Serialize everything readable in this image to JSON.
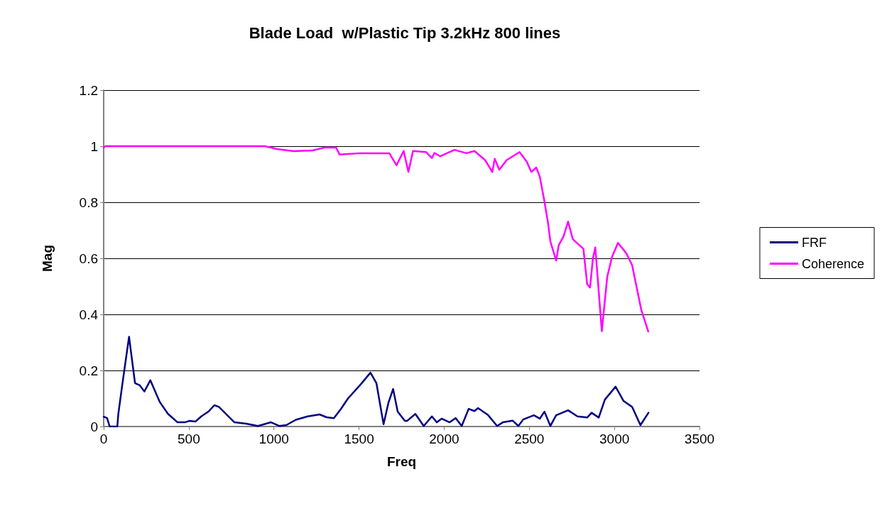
{
  "chart_data": {
    "type": "line",
    "title": "Blade Load  w/Plastic Tip 3.2kHz 800 lines",
    "xlabel": "Freq",
    "ylabel": "Mag",
    "xlim": [
      0,
      3500
    ],
    "xticks": [
      0,
      500,
      1000,
      1500,
      2000,
      2500,
      3000,
      3500
    ],
    "ylim": [
      0,
      1.2
    ],
    "yticks": [
      0,
      0.2,
      0.4,
      0.6,
      0.8,
      1,
      1.2
    ],
    "grid": "y",
    "legend": "right",
    "marker": "none",
    "line_style": "solid",
    "series": [
      {
        "name": "FRF",
        "color": "#000080",
        "x": [
          0,
          20,
          35,
          80,
          86,
          114,
          149,
          184,
          212,
          239,
          274,
          330,
          378,
          434,
          476,
          503,
          540,
          573,
          615,
          650,
          677,
          768,
          837,
          906,
          983,
          1031,
          1073,
          1129,
          1198,
          1268,
          1310,
          1352,
          1393,
          1435,
          1505,
          1567,
          1602,
          1644,
          1672,
          1700,
          1727,
          1769,
          1782,
          1831,
          1880,
          1928,
          1957,
          1985,
          2032,
          2068,
          2103,
          2144,
          2178,
          2199,
          2256,
          2311,
          2345,
          2402,
          2436,
          2464,
          2527,
          2562,
          2589,
          2624,
          2658,
          2728,
          2783,
          2840,
          2866,
          2908,
          2944,
          3007,
          3054,
          3104,
          3153,
          3200
        ],
        "values": [
          0.035,
          0.03,
          0,
          0,
          0.045,
          0.17,
          0.32,
          0.155,
          0.147,
          0.125,
          0.165,
          0.087,
          0.045,
          0.015,
          0.015,
          0.02,
          0.018,
          0.036,
          0.053,
          0.076,
          0.07,
          0.015,
          0.01,
          0.002,
          0.015,
          0.002,
          0.005,
          0.024,
          0.036,
          0.043,
          0.033,
          0.03,
          0.062,
          0.1,
          0.147,
          0.192,
          0.155,
          0.008,
          0.083,
          0.134,
          0.053,
          0.02,
          0.02,
          0.045,
          0.002,
          0.036,
          0.015,
          0.028,
          0.015,
          0.03,
          0.002,
          0.063,
          0.055,
          0.066,
          0.042,
          0.002,
          0.015,
          0.021,
          0.002,
          0.025,
          0.04,
          0.028,
          0.053,
          0.002,
          0.04,
          0.058,
          0.036,
          0.032,
          0.049,
          0.032,
          0.096,
          0.142,
          0.091,
          0.07,
          0.005,
          0.049
        ]
      },
      {
        "name": "Coherence",
        "color": "#ff00ff",
        "x": [
          0,
          10,
          200,
          500,
          800,
          947,
          1018,
          1115,
          1227,
          1296,
          1365,
          1386,
          1505,
          1678,
          1720,
          1762,
          1790,
          1817,
          1894,
          1928,
          1943,
          1977,
          2061,
          2131,
          2178,
          2241,
          2283,
          2297,
          2324,
          2366,
          2443,
          2485,
          2512,
          2541,
          2562,
          2589,
          2610,
          2624,
          2658,
          2673,
          2700,
          2728,
          2756,
          2818,
          2840,
          2857,
          2874,
          2888,
          2926,
          2958,
          2986,
          3021,
          3070,
          3104,
          3158,
          3199
        ],
        "values": [
          0.995,
          1,
          1,
          1,
          1,
          1,
          0.99,
          0.982,
          0.985,
          0.995,
          0.995,
          0.97,
          0.975,
          0.975,
          0.932,
          0.983,
          0.908,
          0.983,
          0.979,
          0.958,
          0.976,
          0.964,
          0.987,
          0.975,
          0.983,
          0.95,
          0.908,
          0.955,
          0.916,
          0.95,
          0.979,
          0.945,
          0.908,
          0.924,
          0.891,
          0.803,
          0.727,
          0.66,
          0.592,
          0.647,
          0.676,
          0.731,
          0.668,
          0.634,
          0.508,
          0.496,
          0.601,
          0.639,
          0.34,
          0.534,
          0.605,
          0.655,
          0.618,
          0.576,
          0.416,
          0.339
        ]
      }
    ]
  }
}
